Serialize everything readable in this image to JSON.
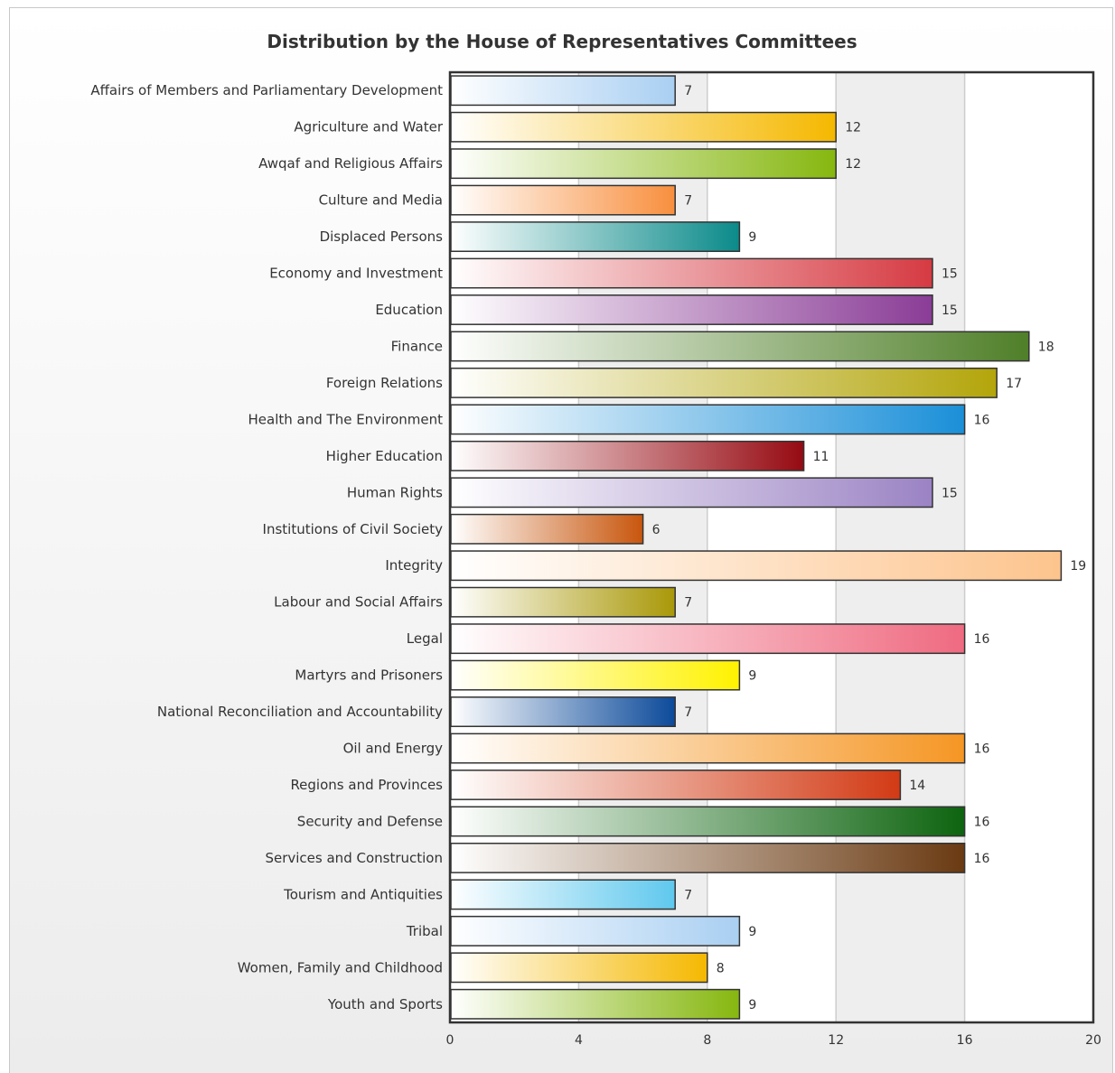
{
  "chart_data": {
    "type": "bar",
    "orientation": "horizontal",
    "title": "Distribution by the House of Representatives Committees",
    "xlabel": "",
    "ylabel": "",
    "xlim": [
      0,
      20
    ],
    "ticks": [
      0,
      4,
      8,
      12,
      16,
      20
    ],
    "grid": true,
    "categories": [
      "Affairs of Members and Parliamentary Development",
      "Agriculture and Water",
      "Awqaf and Religious Affairs",
      "Culture and Media",
      "Displaced Persons",
      "Economy and Investment",
      "Education",
      "Finance",
      "Foreign Relations",
      "Health and The Environment",
      "Higher Education",
      "Human Rights",
      "Institutions of Civil Society",
      "Integrity",
      "Labour and Social Affairs",
      "Legal",
      "Martyrs and Prisoners",
      "National Reconciliation and Accountability",
      "Oil and Energy",
      "Regions and Provinces",
      "Security and Defense",
      "Services and Construction",
      "Tourism and Antiquities",
      "Tribal",
      "Women, Family and Childhood",
      "Youth and Sports"
    ],
    "values": [
      7,
      12,
      12,
      7,
      9,
      15,
      15,
      18,
      17,
      16,
      11,
      15,
      6,
      19,
      7,
      16,
      9,
      7,
      16,
      14,
      16,
      16,
      7,
      9,
      8,
      9
    ],
    "colors": [
      "#a9cff2",
      "#f5b800",
      "#86b70f",
      "#f88f3e",
      "#0b8a8a",
      "#d63a42",
      "#8a3c96",
      "#4f7f28",
      "#b3a50a",
      "#1a8fd8",
      "#960a12",
      "#9b83c4",
      "#c8560d",
      "#fdc48d",
      "#a99808",
      "#ef6a80",
      "#fff200",
      "#0c4a9a",
      "#f59624",
      "#d23a14",
      "#0d640f",
      "#6a3a12",
      "#5fc8ee",
      "#a9cff2",
      "#f5b800",
      "#86b70f"
    ]
  }
}
